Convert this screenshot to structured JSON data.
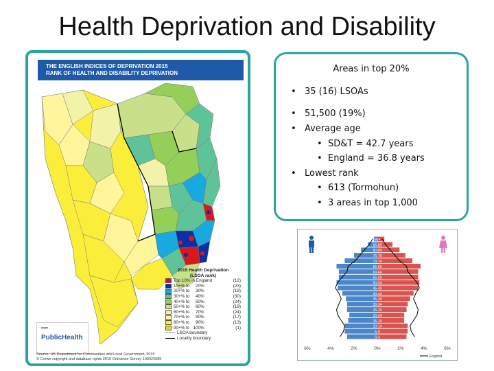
{
  "slide": {
    "title": "Health Deprivation and Disability"
  },
  "map": {
    "header_line1": "THE ENGLISH INDICES OF DEPRIVATION 2015",
    "header_line2": "RANK OF HEALTH AND DISABILITY DEPRIVATION",
    "legend_title1": "2015 Health Deprivation",
    "legend_title2": "(LSOA rank)",
    "legend": [
      {
        "label": "Top 10% in England",
        "count": "(12)",
        "color": "#d7191c"
      },
      {
        "label": "10+% to     20%",
        "count": "(23)",
        "color": "#0a2fa8"
      },
      {
        "label": "20+% to     30%",
        "count": "(18)",
        "color": "#19a8e0"
      },
      {
        "label": "30+% to     40%",
        "count": "(30)",
        "color": "#5fc39a"
      },
      {
        "label": "40+% to     50%",
        "count": "(24)",
        "color": "#94cf5a"
      },
      {
        "label": "50+% to     60%",
        "count": "(19)",
        "color": "#c8e08a"
      },
      {
        "label": "60+% to     70%",
        "count": "(24)",
        "color": "#f2f3a8"
      },
      {
        "label": "70+% to     80%",
        "count": "(17)",
        "color": "#fff59a"
      },
      {
        "label": "80+% to     90%",
        "count": "(13)",
        "color": "#fbee3b"
      },
      {
        "label": "90+% to   100%",
        "count": "(1)",
        "color": "#e8d812"
      }
    ],
    "lsoa_boundary": "LSOA boundary",
    "locality_boundary": "Locality boundary",
    "logo_text": "PublicHealth",
    "source_line1": "Source: UK Department for Communities and Local Government, 2015",
    "source_line2": "© Crown copyright and database rights 2015 Ordnance Survey 100022685"
  },
  "info": {
    "heading": "Areas in top 20%",
    "bullets": [
      {
        "text": "35 (16) LSOAs",
        "level": 1
      },
      {
        "text": "51,500 (19%)",
        "level": 1
      },
      {
        "text": "Average age",
        "level": 1
      },
      {
        "text": "SD&T = 42.7 years",
        "level": 2
      },
      {
        "text": "England = 36.8 years",
        "level": 2
      },
      {
        "text": "Lowest rank",
        "level": 1
      },
      {
        "text": "613 (Tormohun)",
        "level": 2
      },
      {
        "text": "3 areas in top 1,000",
        "level": 2
      }
    ]
  },
  "pyramid": {
    "x_ticks": [
      "6%",
      "4%",
      "2%",
      "0%",
      "2%",
      "4%",
      "6%"
    ],
    "legend_label": "England",
    "male_color": "#4a86c8",
    "female_color": "#d9534f"
  },
  "chart_data": {
    "type": "bar",
    "categories": [
      "0-4",
      "5-9",
      "10-14",
      "15-19",
      "20-24",
      "25-29",
      "30-34",
      "35-39",
      "40-44",
      "45-49",
      "50-54",
      "55-59",
      "60-64",
      "65-69",
      "70-74",
      "75-79",
      "80-84",
      "85-89",
      "90+"
    ],
    "series": [
      {
        "name": "male",
        "values": [
          2.6,
          2.8,
          2.8,
          2.5,
          2.4,
          2.6,
          2.6,
          2.7,
          3.0,
          3.4,
          3.5,
          3.3,
          3.3,
          3.5,
          2.8,
          2.0,
          1.4,
          0.8,
          0.3
        ]
      },
      {
        "name": "female",
        "values": [
          2.5,
          2.6,
          2.6,
          2.3,
          2.3,
          2.5,
          2.6,
          2.8,
          3.1,
          3.5,
          3.6,
          3.5,
          3.5,
          3.7,
          3.0,
          2.4,
          1.9,
          1.3,
          0.6
        ]
      },
      {
        "name": "England",
        "values": [
          3.2,
          2.9,
          2.8,
          3.1,
          3.4,
          3.5,
          3.3,
          3.1,
          3.3,
          3.6,
          3.4,
          3.0,
          2.6,
          2.5,
          1.9,
          1.5,
          1.1,
          0.7,
          0.4
        ]
      }
    ],
    "xlim": [
      -6,
      6
    ]
  }
}
